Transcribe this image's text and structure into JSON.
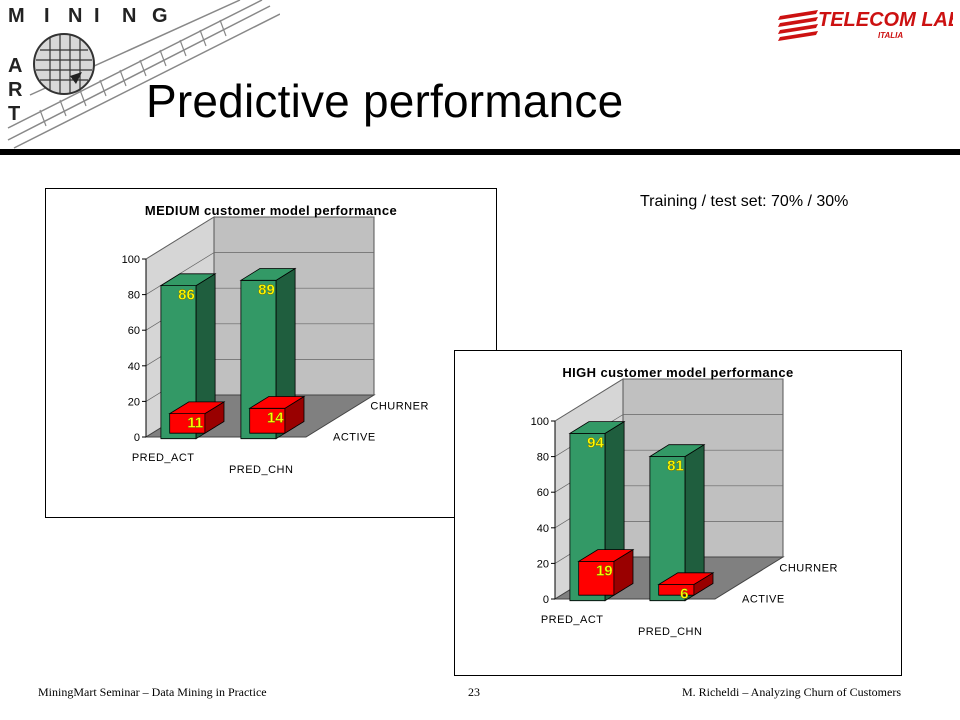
{
  "slide": {
    "title": "Predictive performance",
    "subtitle": "Training / test set: 70% / 30%",
    "logo_left": {
      "letters_top": [
        "I",
        "N",
        "I",
        "N",
        "G"
      ],
      "letters_side": [
        "M",
        "A",
        "R",
        "T"
      ]
    },
    "logo_right": {
      "main": "TELECOM LAB",
      "sub": "ITALIA"
    },
    "footer": {
      "left": "MiningMart Seminar – Data Mining in Practice",
      "page": "23",
      "right": "M. Richeldi – Analyzing Churn of Customers"
    }
  },
  "colors": {
    "green": "#339966",
    "red": "#ff0000",
    "label": "#ffff00",
    "wall": "#c0c0c0",
    "floor": "#808080"
  },
  "chart_data": [
    {
      "type": "bar",
      "title": "MEDIUM customer model performance",
      "categories": [
        "PRED_ACT",
        "PRED_CHN"
      ],
      "series": [
        {
          "name": "CHURNER",
          "values": [
            86,
            89
          ]
        },
        {
          "name": "ACTIVE",
          "values": [
            11,
            14
          ]
        }
      ],
      "yticks": [
        "0",
        "20",
        "40",
        "60",
        "80",
        "100"
      ],
      "ylim": [
        0,
        100
      ],
      "grid": true
    },
    {
      "type": "bar",
      "title": "HIGH customer model performance",
      "categories": [
        "PRED_ACT",
        "PRED_CHN"
      ],
      "series": [
        {
          "name": "CHURNER",
          "values": [
            94,
            81
          ]
        },
        {
          "name": "ACTIVE",
          "values": [
            19,
            6
          ]
        }
      ],
      "yticks": [
        "0",
        "20",
        "40",
        "60",
        "80",
        "100"
      ],
      "ylim": [
        0,
        100
      ],
      "grid": true
    }
  ]
}
